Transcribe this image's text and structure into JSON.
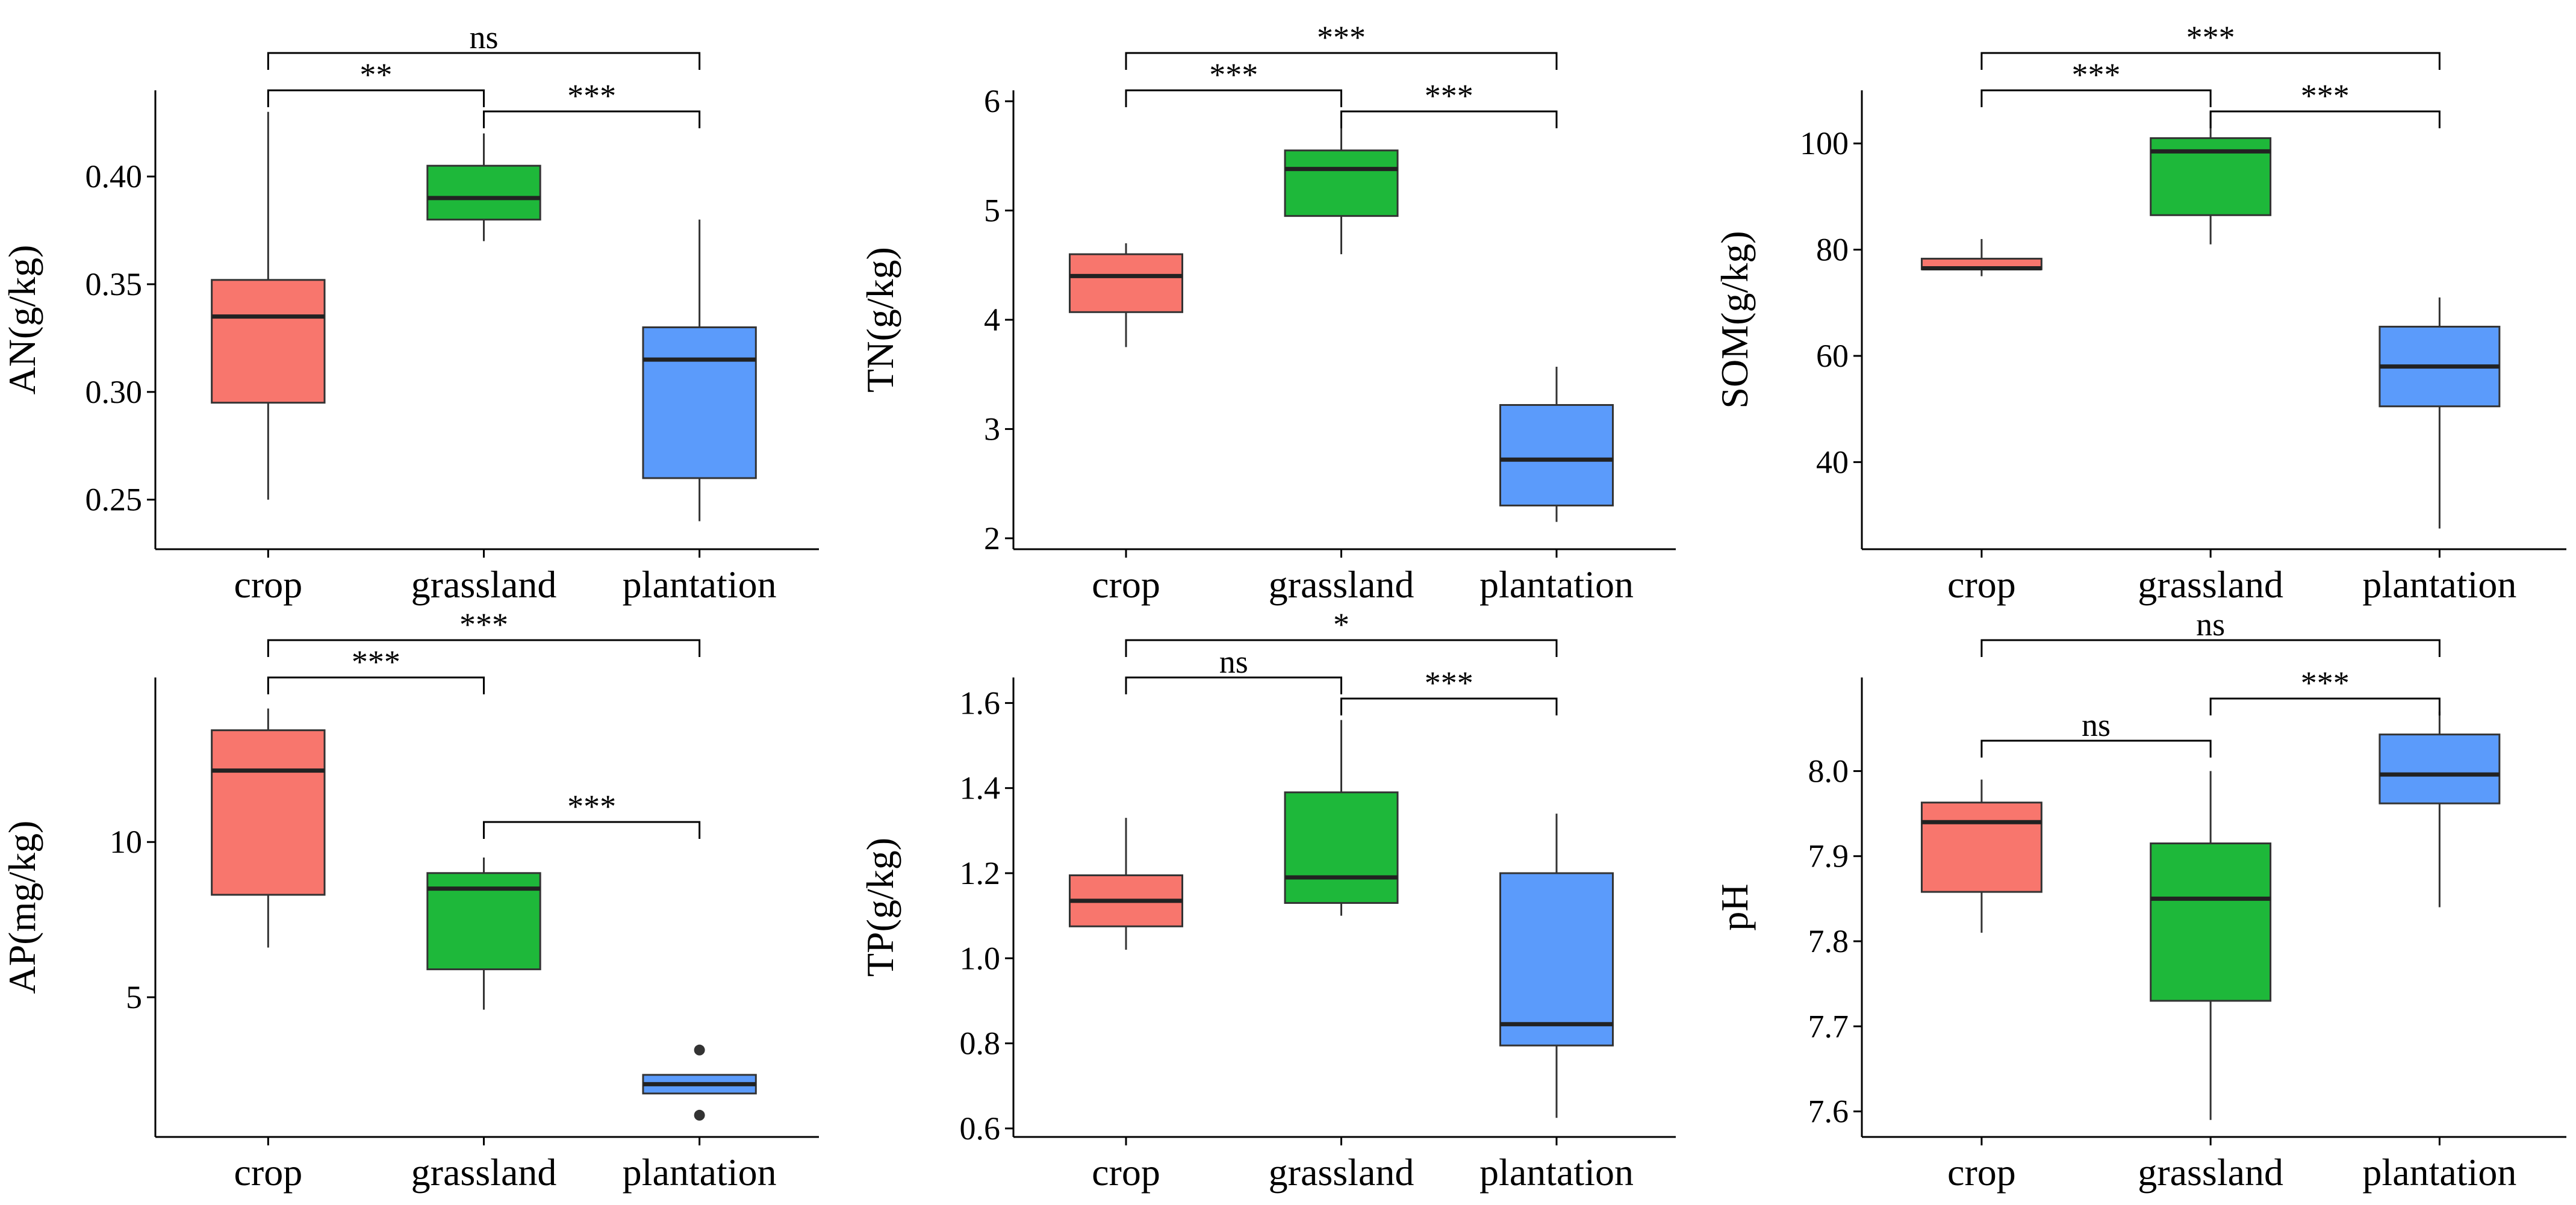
{
  "colors": {
    "crop": "#f8766d",
    "grassland": "#1eb83a",
    "plantation": "#5b9bfb"
  },
  "chart_data": [
    {
      "type": "box",
      "ylabel": "AN(g/kg)",
      "categories": [
        "crop",
        "grassland",
        "plantation"
      ],
      "ylim": [
        0.227,
        0.44
      ],
      "yticks": [
        0.25,
        0.3,
        0.35,
        0.4
      ],
      "ytick_labels": [
        "0.25",
        "0.30",
        "0.35",
        "0.40"
      ],
      "boxes": [
        {
          "name": "crop",
          "whisker_low": 0.25,
          "q1": 0.295,
          "median": 0.335,
          "q3": 0.352,
          "whisker_high": 0.43,
          "outliers": []
        },
        {
          "name": "grassland",
          "whisker_low": 0.37,
          "q1": 0.38,
          "median": 0.39,
          "q3": 0.405,
          "whisker_high": 0.42,
          "outliers": []
        },
        {
          "name": "plantation",
          "whisker_low": 0.24,
          "q1": 0.26,
          "median": 0.315,
          "q3": 0.33,
          "whisker_high": 0.38,
          "outliers": []
        }
      ],
      "significance": [
        {
          "from": 0,
          "to": 1,
          "label": "**"
        },
        {
          "from": 1,
          "to": 2,
          "label": "***"
        },
        {
          "from": 0,
          "to": 2,
          "label": "ns"
        }
      ]
    },
    {
      "type": "box",
      "ylabel": "TN(g/kg)",
      "categories": [
        "crop",
        "grassland",
        "plantation"
      ],
      "ylim": [
        1.9,
        6.1
      ],
      "yticks": [
        2,
        3,
        4,
        5,
        6
      ],
      "ytick_labels": [
        "2",
        "3",
        "4",
        "5",
        "6"
      ],
      "boxes": [
        {
          "name": "crop",
          "whisker_low": 3.75,
          "q1": 4.07,
          "median": 4.4,
          "q3": 4.6,
          "whisker_high": 4.7,
          "outliers": []
        },
        {
          "name": "grassland",
          "whisker_low": 4.6,
          "q1": 4.95,
          "median": 5.38,
          "q3": 5.55,
          "whisker_high": 5.85,
          "outliers": []
        },
        {
          "name": "plantation",
          "whisker_low": 2.15,
          "q1": 2.3,
          "median": 2.72,
          "q3": 3.22,
          "whisker_high": 3.57,
          "outliers": []
        }
      ],
      "significance": [
        {
          "from": 0,
          "to": 1,
          "label": "***"
        },
        {
          "from": 1,
          "to": 2,
          "label": "***"
        },
        {
          "from": 0,
          "to": 2,
          "label": "***"
        }
      ]
    },
    {
      "type": "box",
      "ylabel": "SOM(g/kg)",
      "categories": [
        "crop",
        "grassland",
        "plantation"
      ],
      "ylim": [
        23.6,
        110
      ],
      "yticks": [
        40,
        60,
        80,
        100
      ],
      "ytick_labels": [
        "40",
        "60",
        "80",
        "100"
      ],
      "boxes": [
        {
          "name": "crop",
          "whisker_low": 75,
          "q1": 76.3,
          "median": 76.5,
          "q3": 78.3,
          "whisker_high": 82,
          "outliers": []
        },
        {
          "name": "grassland",
          "whisker_low": 81,
          "q1": 86.5,
          "median": 98.5,
          "q3": 101,
          "whisker_high": 106,
          "outliers": []
        },
        {
          "name": "plantation",
          "whisker_low": 27.5,
          "q1": 50.5,
          "median": 58,
          "q3": 65.5,
          "whisker_high": 71,
          "outliers": []
        }
      ],
      "significance": [
        {
          "from": 0,
          "to": 1,
          "label": "***"
        },
        {
          "from": 1,
          "to": 2,
          "label": "***"
        },
        {
          "from": 0,
          "to": 2,
          "label": "***"
        }
      ]
    },
    {
      "type": "box",
      "ylabel": "AP(mg/kg)",
      "categories": [
        "crop",
        "grassland",
        "plantation"
      ],
      "ylim": [
        0.5,
        15.3
      ],
      "yticks": [
        5,
        10
      ],
      "ytick_labels": [
        "5",
        "10"
      ],
      "boxes": [
        {
          "name": "crop",
          "whisker_low": 6.6,
          "q1": 8.3,
          "median": 12.3,
          "q3": 13.6,
          "whisker_high": 14.3,
          "outliers": []
        },
        {
          "name": "grassland",
          "whisker_low": 4.6,
          "q1": 5.9,
          "median": 8.5,
          "q3": 9.0,
          "whisker_high": 9.5,
          "outliers": []
        },
        {
          "name": "plantation",
          "whisker_low": 1.9,
          "q1": 1.9,
          "median": 2.2,
          "q3": 2.5,
          "whisker_high": 2.5,
          "outliers": [
            3.3,
            1.2
          ]
        }
      ],
      "significance": [
        {
          "from": 0,
          "to": 1,
          "label": "***"
        },
        {
          "from": 1,
          "to": 2,
          "label": "***"
        },
        {
          "from": 0,
          "to": 2,
          "label": "***"
        }
      ]
    },
    {
      "type": "box",
      "ylabel": "TP(g/kg)",
      "categories": [
        "crop",
        "grassland",
        "plantation"
      ],
      "ylim": [
        0.58,
        1.66
      ],
      "yticks": [
        0.6,
        0.8,
        1.0,
        1.2,
        1.4,
        1.6
      ],
      "ytick_labels": [
        "0.6",
        "0.8",
        "1.0",
        "1.2",
        "1.4",
        "1.6"
      ],
      "boxes": [
        {
          "name": "crop",
          "whisker_low": 1.02,
          "q1": 1.075,
          "median": 1.135,
          "q3": 1.195,
          "whisker_high": 1.33,
          "outliers": []
        },
        {
          "name": "grassland",
          "whisker_low": 1.1,
          "q1": 1.13,
          "median": 1.19,
          "q3": 1.39,
          "whisker_high": 1.56,
          "outliers": []
        },
        {
          "name": "plantation",
          "whisker_low": 0.625,
          "q1": 0.795,
          "median": 0.845,
          "q3": 1.2,
          "whisker_high": 1.34,
          "outliers": []
        }
      ],
      "significance": [
        {
          "from": 0,
          "to": 1,
          "label": "ns"
        },
        {
          "from": 1,
          "to": 2,
          "label": "***"
        },
        {
          "from": 0,
          "to": 2,
          "label": "*"
        }
      ]
    },
    {
      "type": "box",
      "ylabel": "pH",
      "categories": [
        "crop",
        "grassland",
        "plantation"
      ],
      "ylim": [
        7.57,
        8.11
      ],
      "yticks": [
        7.6,
        7.7,
        7.8,
        7.9,
        8.0
      ],
      "ytick_labels": [
        "7.6",
        "7.7",
        "7.8",
        "7.9",
        "8.0"
      ],
      "boxes": [
        {
          "name": "crop",
          "whisker_low": 7.81,
          "q1": 7.858,
          "median": 7.94,
          "q3": 7.963,
          "whisker_high": 7.99,
          "outliers": []
        },
        {
          "name": "grassland",
          "whisker_low": 7.59,
          "q1": 7.73,
          "median": 7.85,
          "q3": 7.915,
          "whisker_high": 8.0,
          "outliers": []
        },
        {
          "name": "plantation",
          "whisker_low": 7.84,
          "q1": 7.962,
          "median": 7.996,
          "q3": 8.043,
          "whisker_high": 8.07,
          "outliers": []
        }
      ],
      "significance": [
        {
          "from": 0,
          "to": 1,
          "label": "ns"
        },
        {
          "from": 1,
          "to": 2,
          "label": "***"
        },
        {
          "from": 0,
          "to": 2,
          "label": "ns"
        }
      ]
    }
  ]
}
